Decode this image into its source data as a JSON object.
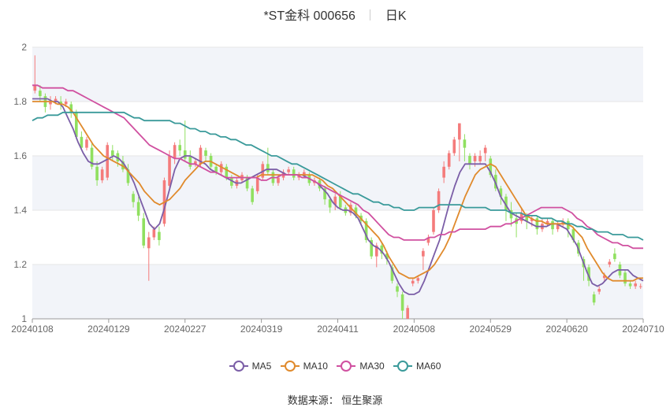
{
  "title": "*ST金科 000656",
  "period": "日K",
  "source": "数据来源：  恒生聚源",
  "chart_data": {
    "type": "candlestick",
    "ylim": [
      1,
      2
    ],
    "yticks": [
      "1",
      "1.2",
      "1.4",
      "1.6",
      "1.8",
      "2"
    ],
    "xticks": [
      "20240108",
      "20240129",
      "20240227",
      "20240319",
      "20240411",
      "20240508",
      "20240529",
      "20240620",
      "20240710"
    ],
    "up_color": "#f47b7b",
    "down_color": "#90e060",
    "grid_band_color": "#f2f4f9",
    "candles": [
      [
        1.84,
        1.86,
        1.97,
        1.83
      ],
      [
        1.84,
        1.82,
        1.86,
        1.8
      ],
      [
        1.82,
        1.78,
        1.83,
        1.76
      ],
      [
        1.79,
        1.8,
        1.82,
        1.77
      ],
      [
        1.8,
        1.81,
        1.82,
        1.79
      ],
      [
        1.8,
        1.79,
        1.82,
        1.77
      ],
      [
        1.79,
        1.8,
        1.81,
        1.78
      ],
      [
        1.79,
        1.76,
        1.8,
        1.74
      ],
      [
        1.76,
        1.67,
        1.77,
        1.66
      ],
      [
        1.67,
        1.63,
        1.69,
        1.62
      ],
      [
        1.63,
        1.66,
        1.67,
        1.62
      ],
      [
        1.63,
        1.56,
        1.65,
        1.55
      ],
      [
        1.56,
        1.51,
        1.58,
        1.49
      ],
      [
        1.51,
        1.55,
        1.56,
        1.5
      ],
      [
        1.52,
        1.64,
        1.65,
        1.51
      ],
      [
        1.62,
        1.6,
        1.64,
        1.58
      ],
      [
        1.61,
        1.58,
        1.62,
        1.56
      ],
      [
        1.58,
        1.55,
        1.6,
        1.54
      ],
      [
        1.55,
        1.5,
        1.57,
        1.49
      ],
      [
        1.46,
        1.43,
        1.47,
        1.41
      ],
      [
        1.43,
        1.38,
        1.45,
        1.36
      ],
      [
        1.37,
        1.27,
        1.39,
        1.26
      ],
      [
        1.26,
        1.3,
        1.32,
        1.14
      ],
      [
        1.3,
        1.33,
        1.34,
        1.29
      ],
      [
        1.32,
        1.29,
        1.34,
        1.27
      ],
      [
        1.35,
        1.51,
        1.52,
        1.34
      ],
      [
        1.49,
        1.6,
        1.62,
        1.48
      ],
      [
        1.59,
        1.64,
        1.65,
        1.57
      ],
      [
        1.64,
        1.62,
        1.66,
        1.6
      ],
      [
        1.62,
        1.59,
        1.73,
        1.58
      ],
      [
        1.6,
        1.56,
        1.62,
        1.55
      ],
      [
        1.57,
        1.58,
        1.59,
        1.56
      ],
      [
        1.57,
        1.63,
        1.64,
        1.56
      ],
      [
        1.62,
        1.6,
        1.63,
        1.58
      ],
      [
        1.6,
        1.56,
        1.61,
        1.55
      ],
      [
        1.56,
        1.54,
        1.57,
        1.53
      ],
      [
        1.54,
        1.57,
        1.58,
        1.53
      ],
      [
        1.56,
        1.52,
        1.57,
        1.51
      ],
      [
        1.52,
        1.49,
        1.53,
        1.48
      ],
      [
        1.49,
        1.51,
        1.52,
        1.48
      ],
      [
        1.51,
        1.53,
        1.54,
        1.5
      ],
      [
        1.52,
        1.48,
        1.53,
        1.47
      ],
      [
        1.48,
        1.43,
        1.49,
        1.42
      ],
      [
        1.47,
        1.52,
        1.53,
        1.46
      ],
      [
        1.52,
        1.57,
        1.58,
        1.51
      ],
      [
        1.57,
        1.54,
        1.63,
        1.53
      ],
      [
        1.54,
        1.5,
        1.55,
        1.49
      ],
      [
        1.5,
        1.52,
        1.53,
        1.49
      ],
      [
        1.52,
        1.54,
        1.55,
        1.51
      ],
      [
        1.54,
        1.55,
        1.56,
        1.53
      ],
      [
        1.55,
        1.52,
        1.56,
        1.51
      ],
      [
        1.52,
        1.53,
        1.54,
        1.51
      ],
      [
        1.53,
        1.54,
        1.55,
        1.52
      ],
      [
        1.53,
        1.5,
        1.54,
        1.49
      ],
      [
        1.5,
        1.51,
        1.52,
        1.49
      ],
      [
        1.51,
        1.48,
        1.52,
        1.47
      ],
      [
        1.48,
        1.44,
        1.49,
        1.42
      ],
      [
        1.44,
        1.41,
        1.45,
        1.39
      ],
      [
        1.42,
        1.45,
        1.46,
        1.4
      ],
      [
        1.45,
        1.41,
        1.47,
        1.4
      ],
      [
        1.41,
        1.39,
        1.42,
        1.38
      ],
      [
        1.39,
        1.42,
        1.43,
        1.38
      ],
      [
        1.41,
        1.38,
        1.42,
        1.37
      ],
      [
        1.38,
        1.36,
        1.39,
        1.35
      ],
      [
        1.36,
        1.29,
        1.37,
        1.28
      ],
      [
        1.29,
        1.23,
        1.3,
        1.22
      ],
      [
        1.23,
        1.27,
        1.28,
        1.19
      ],
      [
        1.27,
        1.24,
        1.28,
        1.22
      ],
      [
        1.24,
        1.22,
        1.25,
        1.2
      ],
      [
        1.19,
        1.14,
        1.2,
        1.13
      ],
      [
        1.12,
        1.1,
        1.13,
        1.08
      ],
      [
        1.09,
        1.03,
        1.1,
        1.0
      ],
      [
        1.0,
        1.04,
        1.05,
        0.99
      ],
      [
        1.13,
        1.14,
        1.15,
        1.12
      ],
      [
        1.14,
        1.15,
        1.16,
        1.13
      ],
      [
        1.23,
        1.25,
        1.26,
        1.18
      ],
      [
        1.28,
        1.3,
        1.31,
        1.27
      ],
      [
        1.32,
        1.4,
        1.41,
        1.31
      ],
      [
        1.4,
        1.47,
        1.48,
        1.39
      ],
      [
        1.52,
        1.56,
        1.58,
        1.5
      ],
      [
        1.56,
        1.61,
        1.62,
        1.55
      ],
      [
        1.61,
        1.66,
        1.67,
        1.6
      ],
      [
        1.66,
        1.72,
        1.72,
        1.58
      ],
      [
        1.66,
        1.63,
        1.68,
        1.58
      ],
      [
        1.6,
        1.57,
        1.61,
        1.55
      ],
      [
        1.58,
        1.6,
        1.61,
        1.56
      ],
      [
        1.58,
        1.6,
        1.62,
        1.57
      ],
      [
        1.61,
        1.63,
        1.64,
        1.58
      ],
      [
        1.59,
        1.53,
        1.6,
        1.52
      ],
      [
        1.53,
        1.48,
        1.55,
        1.47
      ],
      [
        1.48,
        1.45,
        1.49,
        1.42
      ],
      [
        1.45,
        1.4,
        1.46,
        1.36
      ],
      [
        1.4,
        1.37,
        1.43,
        1.34
      ],
      [
        1.37,
        1.35,
        1.39,
        1.3
      ],
      [
        1.36,
        1.39,
        1.41,
        1.35
      ],
      [
        1.38,
        1.36,
        1.39,
        1.33
      ],
      [
        1.36,
        1.37,
        1.38,
        1.34
      ],
      [
        1.37,
        1.33,
        1.38,
        1.31
      ],
      [
        1.33,
        1.35,
        1.37,
        1.32
      ],
      [
        1.35,
        1.36,
        1.37,
        1.34
      ],
      [
        1.36,
        1.33,
        1.37,
        1.31
      ],
      [
        1.33,
        1.35,
        1.36,
        1.32
      ],
      [
        1.35,
        1.36,
        1.37,
        1.34
      ],
      [
        1.36,
        1.33,
        1.37,
        1.3
      ],
      [
        1.33,
        1.29,
        1.34,
        1.28
      ],
      [
        1.28,
        1.24,
        1.29,
        1.23
      ],
      [
        1.22,
        1.19,
        1.23,
        1.14
      ],
      [
        1.19,
        1.14,
        1.2,
        1.12
      ],
      [
        1.09,
        1.06,
        1.1,
        1.05
      ],
      [
        1.1,
        1.11,
        1.12,
        1.09
      ],
      [
        1.15,
        1.16,
        1.17,
        1.14
      ],
      [
        1.2,
        1.21,
        1.22,
        1.19
      ],
      [
        1.24,
        1.22,
        1.26,
        1.21
      ],
      [
        1.2,
        1.16,
        1.21,
        1.15
      ],
      [
        1.17,
        1.13,
        1.18,
        1.12
      ],
      [
        1.13,
        1.12,
        1.14,
        1.11
      ],
      [
        1.12,
        1.13,
        1.14,
        1.11
      ],
      [
        1.12,
        1.12,
        1.13,
        1.11
      ]
    ],
    "series": [
      {
        "name": "MA5",
        "color": "#7b5ea7",
        "values": [
          1.81,
          1.81,
          1.81,
          1.81,
          1.8,
          1.8,
          1.78,
          1.74,
          1.7,
          1.65,
          1.61,
          1.58,
          1.57,
          1.57,
          1.58,
          1.59,
          1.6,
          1.59,
          1.57,
          1.54,
          1.5,
          1.45,
          1.4,
          1.35,
          1.33,
          1.35,
          1.41,
          1.48,
          1.55,
          1.59,
          1.6,
          1.6,
          1.59,
          1.58,
          1.57,
          1.55,
          1.54,
          1.53,
          1.52,
          1.51,
          1.5,
          1.5,
          1.51,
          1.52,
          1.53,
          1.54,
          1.55,
          1.55,
          1.55,
          1.54,
          1.53,
          1.53,
          1.53,
          1.53,
          1.52,
          1.51,
          1.5,
          1.48,
          1.46,
          1.43,
          1.41,
          1.4,
          1.4,
          1.39,
          1.37,
          1.33,
          1.29,
          1.27,
          1.26,
          1.24,
          1.21,
          1.17,
          1.13,
          1.1,
          1.09,
          1.09,
          1.1,
          1.14,
          1.19,
          1.24,
          1.29,
          1.36,
          1.43,
          1.49,
          1.54,
          1.57,
          1.57,
          1.57,
          1.57,
          1.57,
          1.54,
          1.5,
          1.45,
          1.42,
          1.39,
          1.38,
          1.37,
          1.36,
          1.35,
          1.34,
          1.34,
          1.34,
          1.35,
          1.35,
          1.34,
          1.33,
          1.3,
          1.27,
          1.22,
          1.17,
          1.13,
          1.12,
          1.13,
          1.15,
          1.17,
          1.18,
          1.18,
          1.18,
          1.16,
          1.15,
          1.14
        ]
      },
      {
        "name": "MA10",
        "color": "#e08a2c",
        "values": [
          1.8,
          1.8,
          1.8,
          1.8,
          1.8,
          1.79,
          1.79,
          1.78,
          1.76,
          1.73,
          1.7,
          1.67,
          1.64,
          1.62,
          1.6,
          1.59,
          1.58,
          1.57,
          1.56,
          1.54,
          1.52,
          1.5,
          1.47,
          1.45,
          1.43,
          1.42,
          1.43,
          1.44,
          1.46,
          1.48,
          1.51,
          1.53,
          1.55,
          1.57,
          1.58,
          1.58,
          1.57,
          1.56,
          1.55,
          1.54,
          1.53,
          1.52,
          1.52,
          1.52,
          1.52,
          1.53,
          1.53,
          1.53,
          1.53,
          1.53,
          1.53,
          1.53,
          1.53,
          1.53,
          1.53,
          1.53,
          1.52,
          1.51,
          1.49,
          1.48,
          1.46,
          1.44,
          1.42,
          1.4,
          1.38,
          1.36,
          1.34,
          1.32,
          1.3,
          1.27,
          1.23,
          1.2,
          1.17,
          1.16,
          1.15,
          1.15,
          1.16,
          1.17,
          1.18,
          1.2,
          1.23,
          1.26,
          1.3,
          1.35,
          1.4,
          1.45,
          1.49,
          1.53,
          1.55,
          1.56,
          1.57,
          1.56,
          1.53,
          1.5,
          1.47,
          1.44,
          1.41,
          1.38,
          1.37,
          1.36,
          1.36,
          1.35,
          1.35,
          1.35,
          1.35,
          1.35,
          1.34,
          1.32,
          1.3,
          1.26,
          1.23,
          1.2,
          1.17,
          1.15,
          1.14,
          1.14,
          1.14,
          1.14,
          1.14,
          1.15,
          1.15
        ]
      },
      {
        "name": "MA30",
        "color": "#d050a0",
        "values": [
          1.86,
          1.86,
          1.85,
          1.85,
          1.85,
          1.85,
          1.85,
          1.84,
          1.84,
          1.83,
          1.82,
          1.81,
          1.8,
          1.79,
          1.78,
          1.77,
          1.76,
          1.75,
          1.74,
          1.72,
          1.7,
          1.68,
          1.66,
          1.64,
          1.63,
          1.62,
          1.61,
          1.6,
          1.59,
          1.59,
          1.58,
          1.57,
          1.57,
          1.56,
          1.55,
          1.54,
          1.54,
          1.53,
          1.52,
          1.52,
          1.52,
          1.52,
          1.52,
          1.52,
          1.52,
          1.51,
          1.51,
          1.52,
          1.52,
          1.53,
          1.53,
          1.53,
          1.53,
          1.52,
          1.52,
          1.51,
          1.5,
          1.49,
          1.48,
          1.47,
          1.46,
          1.45,
          1.44,
          1.43,
          1.42,
          1.4,
          1.39,
          1.37,
          1.35,
          1.33,
          1.31,
          1.3,
          1.3,
          1.29,
          1.29,
          1.29,
          1.29,
          1.29,
          1.3,
          1.3,
          1.31,
          1.31,
          1.32,
          1.32,
          1.33,
          1.33,
          1.33,
          1.33,
          1.33,
          1.33,
          1.34,
          1.34,
          1.34,
          1.35,
          1.35,
          1.36,
          1.37,
          1.38,
          1.39,
          1.4,
          1.41,
          1.41,
          1.41,
          1.41,
          1.41,
          1.4,
          1.39,
          1.37,
          1.36,
          1.34,
          1.33,
          1.31,
          1.3,
          1.29,
          1.28,
          1.28,
          1.27,
          1.27,
          1.26,
          1.26,
          1.26
        ]
      },
      {
        "name": "MA60",
        "color": "#3a9a9a",
        "values": [
          1.73,
          1.74,
          1.74,
          1.75,
          1.75,
          1.75,
          1.76,
          1.76,
          1.76,
          1.76,
          1.76,
          1.76,
          1.76,
          1.76,
          1.76,
          1.76,
          1.76,
          1.76,
          1.76,
          1.75,
          1.74,
          1.74,
          1.73,
          1.73,
          1.73,
          1.73,
          1.73,
          1.73,
          1.72,
          1.72,
          1.71,
          1.7,
          1.7,
          1.69,
          1.69,
          1.68,
          1.68,
          1.67,
          1.67,
          1.66,
          1.66,
          1.65,
          1.64,
          1.64,
          1.63,
          1.62,
          1.61,
          1.6,
          1.6,
          1.59,
          1.58,
          1.57,
          1.57,
          1.56,
          1.55,
          1.54,
          1.53,
          1.52,
          1.51,
          1.5,
          1.49,
          1.48,
          1.47,
          1.46,
          1.46,
          1.45,
          1.44,
          1.43,
          1.43,
          1.42,
          1.42,
          1.41,
          1.41,
          1.4,
          1.4,
          1.4,
          1.41,
          1.41,
          1.41,
          1.41,
          1.42,
          1.42,
          1.42,
          1.42,
          1.42,
          1.41,
          1.41,
          1.41,
          1.41,
          1.41,
          1.4,
          1.4,
          1.4,
          1.4,
          1.39,
          1.39,
          1.39,
          1.38,
          1.38,
          1.38,
          1.37,
          1.37,
          1.37,
          1.36,
          1.36,
          1.35,
          1.35,
          1.34,
          1.34,
          1.33,
          1.33,
          1.32,
          1.32,
          1.32,
          1.31,
          1.31,
          1.31,
          1.3,
          1.3,
          1.3,
          1.29
        ]
      }
    ]
  }
}
